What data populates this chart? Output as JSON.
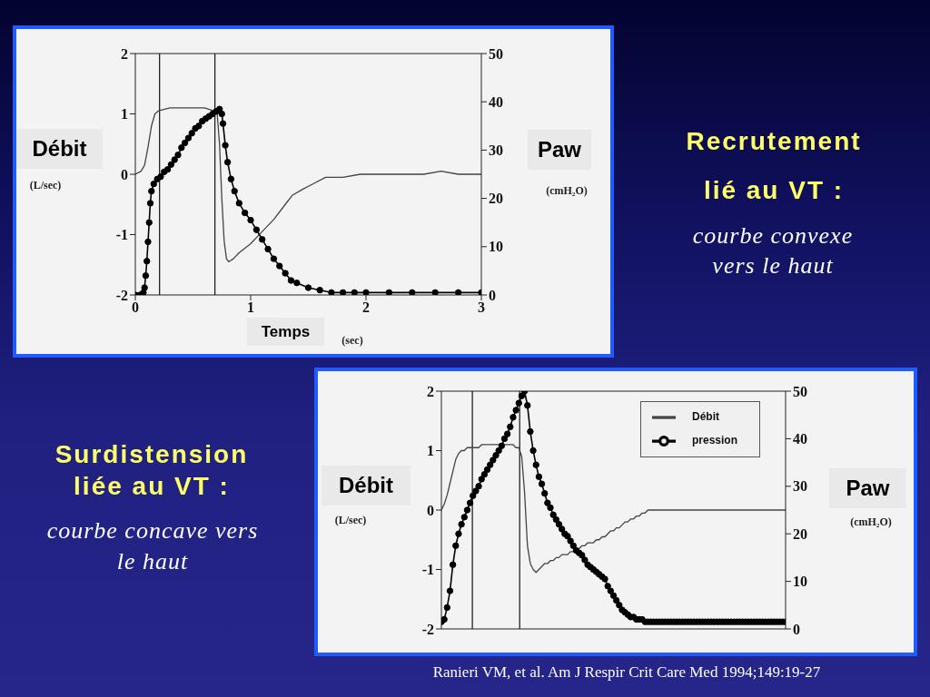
{
  "chart_data": [
    {
      "type": "line",
      "xlabel": "Temps",
      "ylabel": "Débit",
      "y2label": "Paw",
      "annotations": [
        "Recrutement lié au VT :",
        "courbe convexe vers le haut",
        "(L/sec)",
        "(cmH₂O)",
        "(sec)"
      ],
      "xlim": [
        0,
        3
      ],
      "xticks": [
        0,
        1,
        2,
        3
      ],
      "ylim": [
        -2,
        2
      ],
      "yticks": [
        -2,
        -1,
        0,
        1,
        2
      ],
      "y2lim": [
        0,
        50
      ],
      "y2ticks": [
        0,
        10,
        20,
        30,
        40,
        50
      ],
      "series": [
        {
          "color": "#444444",
          "marker": "none",
          "x": [
            0,
            0.05,
            0.08,
            0.11,
            0.14,
            0.17,
            0.2,
            0.3,
            0.4,
            0.5,
            0.6,
            0.68,
            0.71,
            0.73,
            0.75,
            0.77,
            0.79,
            0.81,
            0.85,
            0.9,
            1.0,
            1.1,
            1.2,
            1.3,
            1.36,
            1.45,
            1.55,
            1.65,
            1.8,
            1.95,
            2.2,
            2.5,
            2.65,
            2.8,
            3.0
          ],
          "values": [
            0,
            0.05,
            0.15,
            0.45,
            0.8,
            1.0,
            1.05,
            1.1,
            1.1,
            1.1,
            1.1,
            1.05,
            1.0,
            0.5,
            -0.4,
            -1.1,
            -1.4,
            -1.45,
            -1.4,
            -1.3,
            -1.15,
            -0.95,
            -0.75,
            -0.5,
            -0.35,
            -0.25,
            -0.15,
            -0.05,
            -0.05,
            0,
            0,
            0,
            0.05,
            0,
            0
          ]
        },
        {
          "color": "#000000",
          "marker": "circle",
          "axis": "y2",
          "x": [
            0,
            0.04,
            0.07,
            0.08,
            0.09,
            0.1,
            0.11,
            0.12,
            0.13,
            0.14,
            0.16,
            0.19,
            0.22,
            0.25,
            0.28,
            0.31,
            0.34,
            0.37,
            0.4,
            0.43,
            0.46,
            0.49,
            0.52,
            0.55,
            0.58,
            0.61,
            0.64,
            0.67,
            0.7,
            0.73,
            0.75,
            0.76,
            0.78,
            0.8,
            0.83,
            0.86,
            0.9,
            0.95,
            1.0,
            1.05,
            1.1,
            1.15,
            1.2,
            1.25,
            1.3,
            1.35,
            1.4,
            1.5,
            1.6,
            1.7,
            1.8,
            1.9,
            2.0,
            2.2,
            2.4,
            2.6,
            2.8,
            3.0
          ],
          "values": [
            0,
            0,
            0.5,
            1.5,
            4,
            7,
            11,
            15,
            19,
            21.5,
            23,
            24,
            24.5,
            25.5,
            26,
            27,
            28,
            29,
            30.5,
            31.5,
            32.5,
            33.5,
            34.5,
            35,
            36,
            36.5,
            37,
            37.5,
            38,
            38.5,
            37.5,
            35.5,
            31,
            27.5,
            24,
            21.5,
            19,
            17,
            15.5,
            13.5,
            11.5,
            9.5,
            7.5,
            6,
            4.5,
            3,
            2.5,
            1.5,
            1,
            0.5,
            0.5,
            0.5,
            0.5,
            0.5,
            0.5,
            0.5,
            0.5,
            0.5
          ]
        }
      ],
      "ref_lines": [
        {
          "axis": "x",
          "value": 0.21,
          "color": "#222222"
        },
        {
          "axis": "x",
          "value": 0.69,
          "color": "#222222"
        }
      ]
    },
    {
      "type": "line",
      "ylabel": "Débit",
      "y2label": "Paw",
      "annotations": [
        "Surdistension liée au VT :",
        "courbe concave vers le haut",
        "(L/sec)",
        "(cmH₂O)",
        "Ranieri VM, et al. Am J Respir Crit Care Med 1994;149:19-27"
      ],
      "categories": [
        null,
        null,
        null,
        null,
        null,
        null,
        null,
        null,
        null,
        null,
        null,
        null,
        null,
        null,
        null,
        null,
        null,
        null,
        null,
        null,
        null,
        null,
        null,
        null,
        null,
        null,
        null,
        null,
        null,
        null,
        null,
        null,
        null,
        null,
        null,
        null,
        null,
        null,
        null,
        null,
        null,
        null,
        null,
        null,
        null,
        null,
        null,
        null,
        null,
        null,
        null,
        null,
        null,
        null,
        null,
        null,
        null,
        null,
        null,
        null,
        null,
        null,
        null,
        null,
        null,
        null,
        null,
        null,
        null,
        null,
        null,
        null,
        null,
        null,
        null,
        null,
        null,
        null,
        null,
        null,
        null,
        null,
        null,
        null,
        null,
        null,
        null,
        null,
        null,
        null,
        null,
        null,
        null,
        null,
        null,
        null,
        null,
        null,
        null,
        null,
        null,
        null,
        null,
        null,
        null,
        null,
        null,
        null,
        null,
        null,
        null,
        null,
        null,
        null,
        null,
        null,
        null,
        null,
        null,
        null,
        null
      ],
      "ylim": [
        -2,
        2
      ],
      "yticks": [
        -2,
        -1,
        0,
        1,
        2
      ],
      "y2lim": [
        0,
        50
      ],
      "y2ticks": [
        0,
        10,
        20,
        30,
        40,
        50
      ],
      "legend": "top right",
      "series": [
        {
          "name": "Débit",
          "color": "#444444",
          "marker": "none",
          "values": [
            0,
            0.1,
            0.25,
            0.45,
            0.65,
            0.85,
            0.95,
            1,
            1,
            1.05,
            1.05,
            1.05,
            1.05,
            1.05,
            1.1,
            1.1,
            1.1,
            1.1,
            1.1,
            1.1,
            1.1,
            1.1,
            1.1,
            1.1,
            1.1,
            1.1,
            1.05,
            1.05,
            0.9,
            0.3,
            -0.6,
            -0.9,
            -1,
            -1.05,
            -1,
            -0.95,
            -0.9,
            -0.9,
            -0.85,
            -0.85,
            -0.8,
            -0.8,
            -0.75,
            -0.75,
            -0.75,
            -0.7,
            -0.7,
            -0.65,
            -0.65,
            -0.6,
            -0.6,
            -0.55,
            -0.55,
            -0.55,
            -0.5,
            -0.5,
            -0.45,
            -0.45,
            -0.4,
            -0.35,
            -0.35,
            -0.3,
            -0.3,
            -0.25,
            -0.2,
            -0.2,
            -0.15,
            -0.15,
            -0.1,
            -0.1,
            -0.05,
            -0.05,
            0,
            0,
            0,
            0,
            0,
            0,
            0,
            0,
            0,
            0,
            0,
            0,
            0,
            0,
            0,
            0,
            0,
            0,
            0,
            0,
            0,
            0,
            0,
            0,
            0,
            0,
            0,
            0,
            0,
            0,
            0,
            0,
            0,
            0,
            0,
            0,
            0,
            0,
            0,
            0,
            0,
            0,
            0,
            0,
            0,
            0,
            0,
            0,
            0
          ]
        },
        {
          "name": "pression",
          "color": "#000000",
          "marker": "circle",
          "axis": "y2",
          "values": [
            1.5,
            2,
            4.5,
            8,
            13.5,
            17.5,
            20,
            22,
            23.5,
            25,
            26.5,
            28,
            29,
            30,
            31.5,
            32.5,
            33.5,
            34.5,
            35.5,
            36.5,
            37.5,
            38.5,
            40,
            41,
            42.5,
            44.5,
            46,
            47.5,
            49,
            50,
            47,
            41.5,
            37.5,
            34.5,
            32,
            30.5,
            28.5,
            26.5,
            25.5,
            24,
            23,
            22,
            21,
            20,
            19.5,
            18.5,
            17.5,
            16.5,
            16,
            15.5,
            14.5,
            13.5,
            13,
            12.5,
            12,
            11.5,
            11,
            10.5,
            9,
            8,
            7,
            6,
            5,
            4,
            3.5,
            3,
            2.5,
            2.5,
            2,
            2,
            2,
            1.5,
            1.5,
            1.5,
            1.5,
            1.5,
            1.5,
            1.5,
            1.5,
            1.5,
            1.5,
            1.5,
            1.5,
            1.5,
            1.5,
            1.5,
            1.5,
            1.5,
            1.5,
            1.5,
            1.5,
            1.5,
            1.5,
            1.5,
            1.5,
            1.5,
            1.5,
            1.5,
            1.5,
            1.5,
            1.5,
            1.5,
            1.5,
            1.5,
            1.5,
            1.5,
            1.5,
            1.5,
            1.5,
            1.5,
            1.5,
            1.5,
            1.5,
            1.5,
            1.5,
            1.5,
            1.5,
            1.5,
            1.5,
            1.5,
            1.5
          ]
        }
      ]
    }
  ]
}
